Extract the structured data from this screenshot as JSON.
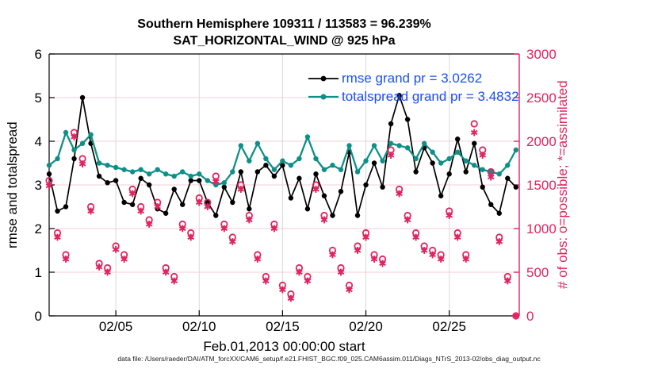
{
  "title": {
    "line1": "Southern Hemisphere 109311 / 113583 = 96.239%",
    "line2": "SAT_HORIZONTAL_WIND @ 925 hPa"
  },
  "legend": {
    "text_color": "#1a52ec",
    "items": [
      {
        "label": "rmse grand pr = 3.0262",
        "color": "#000000"
      },
      {
        "label": "totalspread grand pr = 3.4832",
        "color": "#0e8f88"
      }
    ]
  },
  "axes": {
    "y_left": {
      "label": "rmse and totalspread",
      "min": 0,
      "max": 6,
      "ticks": [
        0,
        1,
        2,
        3,
        4,
        5,
        6
      ],
      "color": "#000000"
    },
    "y_right": {
      "label": "# of obs: o=possible; *=assimilated",
      "min": 0,
      "max": 3000,
      "ticks": [
        0,
        500,
        1000,
        1500,
        2000,
        2500,
        3000
      ],
      "color": "#e0245f"
    },
    "x": {
      "label": "Feb.01,2013 00:00:00 start",
      "min_day": 0,
      "max_day": 28.2,
      "ticks": [
        {
          "day": 4,
          "label": "02/05"
        },
        {
          "day": 9,
          "label": "02/10"
        },
        {
          "day": 14,
          "label": "02/15"
        },
        {
          "day": 19,
          "label": "02/20"
        },
        {
          "day": 24,
          "label": "02/25"
        }
      ]
    }
  },
  "grid": {
    "h_color": "#f6ccd7",
    "v_color": "#d9d9d9"
  },
  "footer": "data file: /Users/raeder/DAI/ATM_forcXX/CAM6_setup/f.e21.FHIST_BGC.f09_025.CAM6assim.011/Diags_NTrS_2013-02/obs_diag_output.nc",
  "chart_data": {
    "type": "line",
    "title": "Southern Hemisphere 109311 / 113583 = 96.239% | SAT_HORIZONTAL_WIND @ 925 hPa",
    "xlabel": "Feb.01,2013 00:00:00 start",
    "ylabel_left": "rmse and totalspread",
    "ylabel_right": "# of obs: o=possible; *=assimilated",
    "ylim_left": [
      0,
      6
    ],
    "ylim_right": [
      0,
      3000
    ],
    "grid": true,
    "legend_position": "top-right-inside",
    "x_days": [
      0,
      0.5,
      1,
      1.5,
      2,
      2.5,
      3,
      3.5,
      4,
      4.5,
      5,
      5.5,
      6,
      6.5,
      7,
      7.5,
      8,
      8.5,
      9,
      9.5,
      10,
      10.5,
      11,
      11.5,
      12,
      12.5,
      13,
      13.5,
      14,
      14.5,
      15,
      15.5,
      16,
      16.5,
      17,
      17.5,
      18,
      18.5,
      19,
      19.5,
      20,
      20.5,
      21,
      21.5,
      22,
      22.5,
      23,
      23.5,
      24,
      24.5,
      25,
      25.5,
      26,
      26.5,
      27,
      27.5,
      28
    ],
    "series": [
      {
        "name": "rmse",
        "axis": "left",
        "marker": "dot",
        "color": "#000000",
        "grand_pr": 3.0262,
        "values": [
          3.25,
          2.4,
          2.5,
          3.6,
          5.0,
          3.95,
          3.2,
          3.05,
          3.1,
          2.6,
          2.55,
          3.15,
          3.0,
          2.45,
          2.35,
          2.9,
          2.55,
          3.1,
          3.1,
          2.6,
          2.3,
          2.95,
          2.6,
          3.3,
          2.45,
          3.3,
          3.45,
          3.2,
          3.45,
          2.7,
          3.15,
          2.45,
          3.25,
          2.75,
          2.3,
          2.85,
          3.75,
          2.3,
          3.0,
          3.5,
          2.95,
          4.4,
          5.05,
          4.5,
          3.3,
          3.85,
          3.5,
          2.75,
          3.25,
          4.05,
          3.3,
          3.95,
          2.95,
          2.55,
          2.35,
          3.15,
          2.95
        ]
      },
      {
        "name": "totalspread",
        "axis": "left",
        "marker": "dot",
        "color": "#0e8f88",
        "grand_pr": 3.4832,
        "values": [
          3.45,
          3.6,
          4.2,
          3.8,
          3.95,
          4.15,
          3.5,
          3.45,
          3.4,
          3.35,
          3.3,
          3.35,
          3.25,
          3.35,
          3.25,
          3.2,
          3.3,
          3.2,
          3.25,
          3.1,
          3.0,
          3.05,
          3.3,
          3.9,
          3.55,
          3.95,
          3.6,
          3.35,
          3.55,
          3.45,
          3.6,
          4.1,
          3.6,
          3.35,
          3.45,
          3.35,
          3.9,
          3.3,
          3.55,
          3.9,
          3.55,
          3.95,
          3.9,
          3.85,
          3.6,
          3.95,
          3.75,
          3.5,
          3.6,
          3.75,
          3.55,
          3.45,
          3.35,
          3.3,
          3.25,
          3.45,
          3.8
        ]
      },
      {
        "name": "possible",
        "axis": "right",
        "marker": "open-circle",
        "color": "#e0245f",
        "values": [
          1550,
          950,
          700,
          2100,
          1800,
          1250,
          600,
          550,
          800,
          700,
          1450,
          1250,
          1100,
          1300,
          550,
          450,
          1050,
          950,
          1350,
          1300,
          1600,
          1050,
          900,
          1500,
          1150,
          700,
          450,
          1050,
          350,
          250,
          550,
          450,
          1500,
          1150,
          750,
          550,
          350,
          800,
          950,
          700,
          650,
          1900,
          1450,
          1150,
          950,
          800,
          750,
          700,
          1200,
          950,
          700,
          2200,
          1900,
          1650,
          900,
          450,
          0
        ]
      },
      {
        "name": "assimilated",
        "axis": "right",
        "marker": "asterisk",
        "color": "#e0245f",
        "values": [
          1490,
          900,
          650,
          2050,
          1740,
          1200,
          560,
          500,
          760,
          650,
          1400,
          1200,
          1050,
          1250,
          500,
          400,
          1000,
          900,
          1300,
          1250,
          1540,
          1000,
          850,
          1450,
          1100,
          650,
          400,
          1000,
          300,
          200,
          500,
          400,
          1450,
          1100,
          700,
          500,
          300,
          750,
          900,
          650,
          600,
          1840,
          1400,
          1100,
          900,
          750,
          700,
          650,
          1150,
          900,
          650,
          2100,
          1840,
          1590,
          850,
          400,
          0
        ]
      }
    ]
  }
}
